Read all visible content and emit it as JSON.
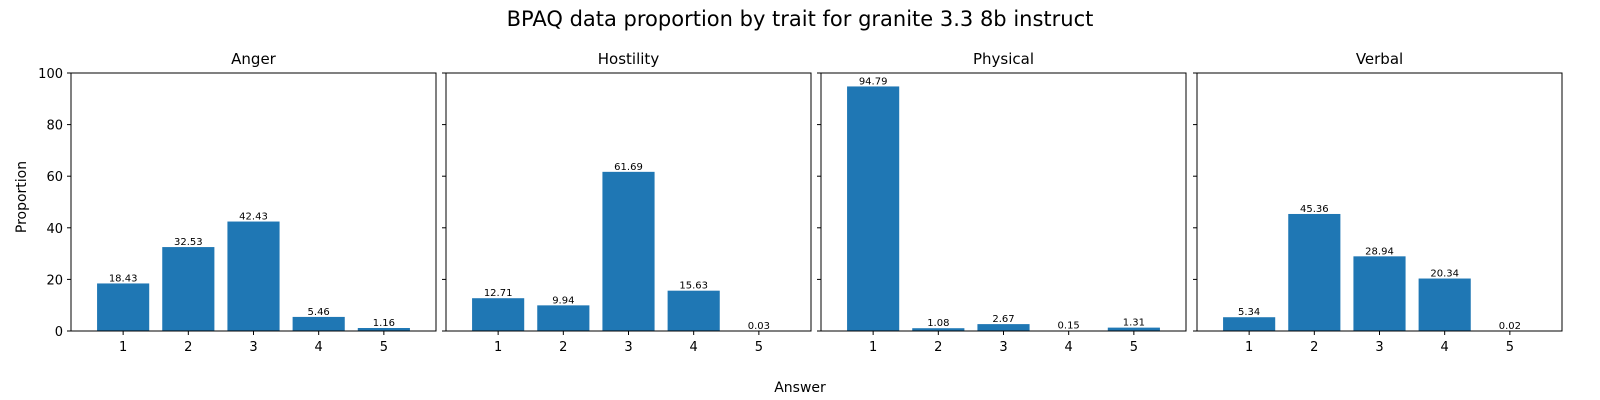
{
  "figure": {
    "title": "BPAQ data proportion by trait for granite 3.3 8b instruct",
    "xlabel": "Answer",
    "ylabel": "Proportion"
  },
  "chart_data": [
    {
      "type": "bar",
      "title": "Anger",
      "categories": [
        "1",
        "2",
        "3",
        "4",
        "5"
      ],
      "values": [
        18.43,
        32.53,
        42.43,
        5.46,
        1.16
      ],
      "labels": [
        "18.43",
        "32.53",
        "42.43",
        "5.46",
        "1.16"
      ],
      "ylim": [
        0,
        100
      ],
      "yticks": [
        "0",
        "20",
        "40",
        "60",
        "80",
        "100"
      ],
      "color": "#1f77b4"
    },
    {
      "type": "bar",
      "title": "Hostility",
      "categories": [
        "1",
        "2",
        "3",
        "4",
        "5"
      ],
      "values": [
        12.71,
        9.94,
        61.69,
        15.63,
        0.03
      ],
      "labels": [
        "12.71",
        "9.94",
        "61.69",
        "15.63",
        "0.03"
      ],
      "ylim": [
        0,
        100
      ],
      "color": "#1f77b4"
    },
    {
      "type": "bar",
      "title": "Physical",
      "categories": [
        "1",
        "2",
        "3",
        "4",
        "5"
      ],
      "values": [
        94.79,
        1.08,
        2.67,
        0.15,
        1.31
      ],
      "labels": [
        "94.79",
        "1.08",
        "2.67",
        "0.15",
        "1.31"
      ],
      "ylim": [
        0,
        100
      ],
      "color": "#1f77b4"
    },
    {
      "type": "bar",
      "title": "Verbal",
      "categories": [
        "1",
        "2",
        "3",
        "4",
        "5"
      ],
      "values": [
        5.34,
        45.36,
        28.94,
        20.34,
        0.02
      ],
      "labels": [
        "5.34",
        "45.36",
        "28.94",
        "20.34",
        "0.02"
      ],
      "ylim": [
        0,
        100
      ],
      "color": "#1f77b4"
    }
  ]
}
